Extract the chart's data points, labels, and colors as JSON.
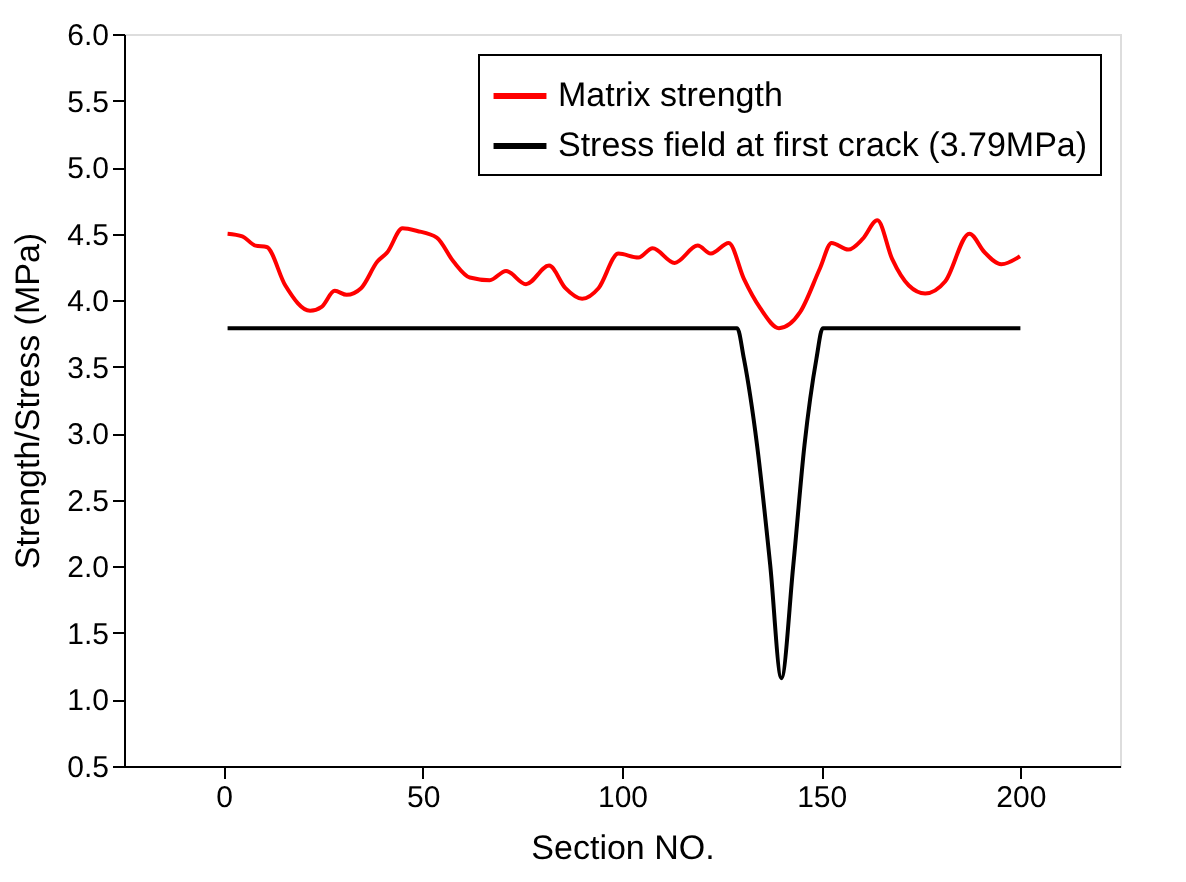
{
  "chart_data": {
    "type": "line",
    "xlabel": "Section NO.",
    "ylabel": "Strength/Stress (MPa)",
    "xlim": [
      -25,
      225
    ],
    "xticks": [
      0,
      50,
      100,
      150,
      200
    ],
    "ylim": [
      0.5,
      6.0
    ],
    "yticks": [
      0.5,
      {
        "value": 1,
        "label": "1.0"
      },
      1.5,
      {
        "value": 2,
        "label": "2.0"
      },
      2.5,
      {
        "value": 3,
        "label": "3.0"
      },
      3.5,
      {
        "value": 4,
        "label": "4.0"
      },
      4.5,
      {
        "value": 5,
        "label": "5.0"
      },
      5.5,
      {
        "value": 6,
        "label": "6.0"
      }
    ],
    "grid": false,
    "legend": "top right",
    "marker": "none",
    "line_style": "solid",
    "series": [
      {
        "name": "Matrix strength",
        "color": "#ff0000",
        "x": [
          1.0,
          4.7,
          8.0,
          10.8,
          15.5,
          21.7,
          24.6,
          27.9,
          30.9,
          34.5,
          38.6,
          41.1,
          44.9,
          48.6,
          53.5,
          57.7,
          61.8,
          66.8,
          70.9,
          75.9,
          81.7,
          85.8,
          90.0,
          94.1,
          99.1,
          104.1,
          107.7,
          113.2,
          119.0,
          122.3,
          126.8,
          130.6,
          134.7,
          139.4,
          144.7,
          149.7,
          152.6,
          156.8,
          160.4,
          164.1,
          167.8,
          172.0,
          176.1,
          181.1,
          187.2,
          191.0,
          195.2,
          199.9
        ],
        "values": [
          4.5,
          4.48,
          4.41,
          4.4,
          4.11,
          3.92,
          3.95,
          4.07,
          4.04,
          4.09,
          4.29,
          4.36,
          4.54,
          4.52,
          4.47,
          4.29,
          4.17,
          4.15,
          4.22,
          4.12,
          4.26,
          4.09,
          4.01,
          4.09,
          4.35,
          4.32,
          4.39,
          4.28,
          4.41,
          4.35,
          4.43,
          4.16,
          3.94,
          3.79,
          3.91,
          4.24,
          4.43,
          4.38,
          4.46,
          4.6,
          4.31,
          4.11,
          4.05,
          4.14,
          4.5,
          4.36,
          4.27,
          4.33
        ]
      },
      {
        "name": "Stress field at first crack (3.79MPa)",
        "color": "#000000",
        "x": [
          1.0,
          128.9,
          130.6,
          133.9,
          137.2,
          140.0,
          143.0,
          145.8,
          148.8,
          150.4,
          200.0
        ],
        "values": [
          3.79,
          3.79,
          3.56,
          2.91,
          2.01,
          1.16,
          2.01,
          2.91,
          3.56,
          3.79,
          3.79
        ]
      }
    ]
  }
}
